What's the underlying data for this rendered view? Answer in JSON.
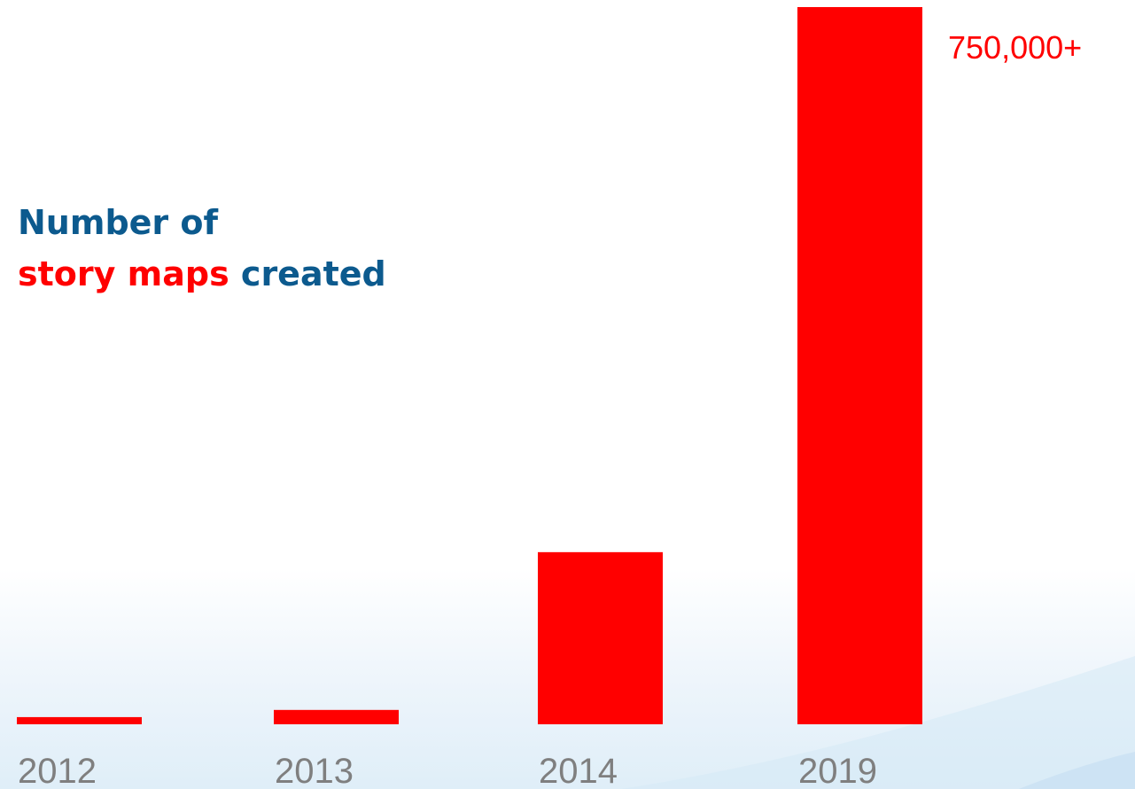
{
  "title": {
    "line1": "Number of",
    "highlight": "story maps",
    "rest": " created"
  },
  "colors": {
    "bar": "#ff0000",
    "title_blue": "#0c5a8e",
    "title_red": "#ff0000",
    "tick": "#7f7f7f"
  },
  "chart_data": {
    "type": "bar",
    "categories": [
      "2012",
      "2013",
      "2014",
      "2019"
    ],
    "values": [
      7500,
      15000,
      180000,
      750000
    ],
    "data_labels": [
      "",
      "",
      "",
      "750,000+"
    ],
    "ylim": [
      0,
      750000
    ],
    "xlabel": "",
    "ylabel": "",
    "grid": false,
    "legend": "none"
  }
}
